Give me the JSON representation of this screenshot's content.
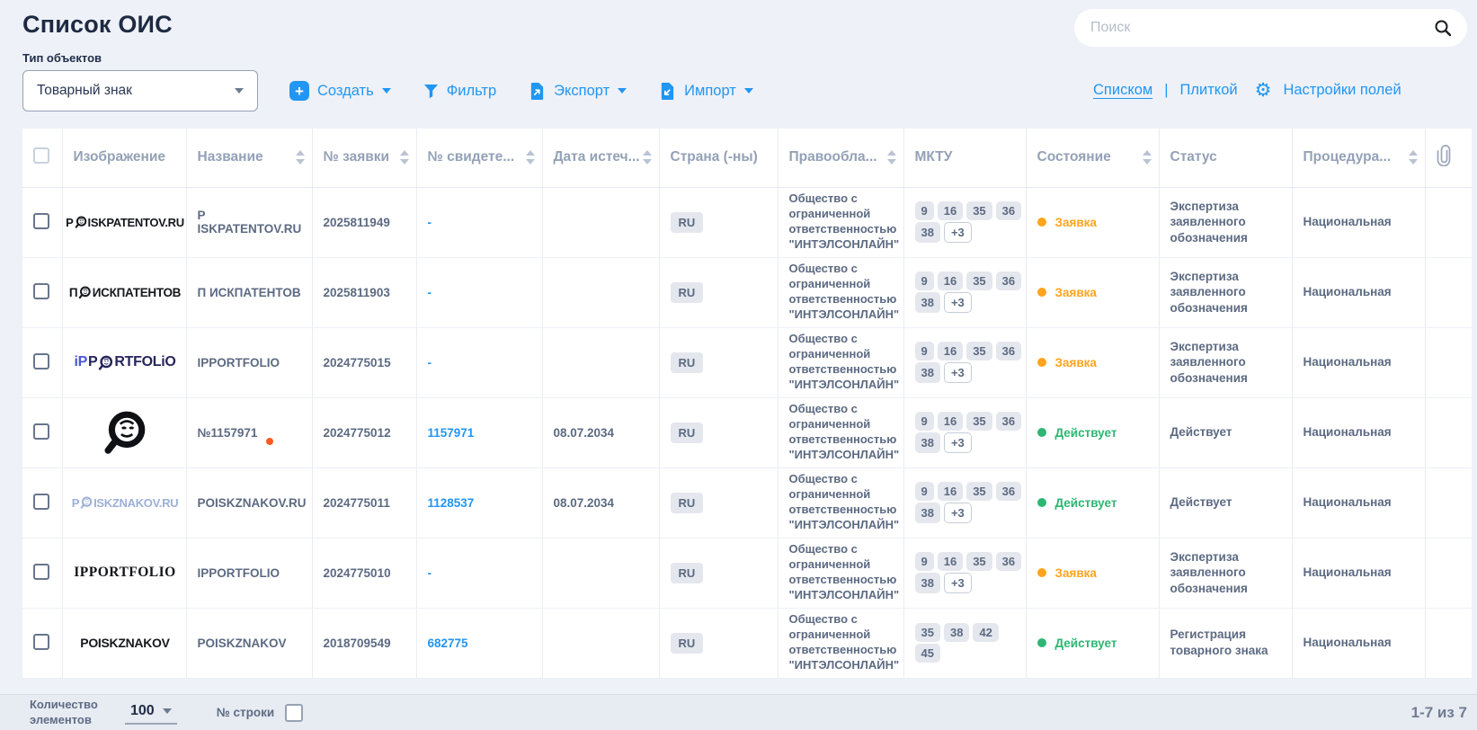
{
  "page": {
    "title": "Список ОИС"
  },
  "search": {
    "placeholder": "Поиск"
  },
  "object_type": {
    "label": "Тип объектов",
    "value": "Товарный знак"
  },
  "toolbar": {
    "create": "Создать",
    "filter": "Фильтр",
    "export": "Экспорт",
    "import": "Импорт"
  },
  "view_switch": {
    "list": "Списком",
    "divider": "|",
    "tiles": "Плиткой",
    "field_settings": "Настройки полей"
  },
  "colors": {
    "accent": "#2196F3",
    "link": "#2196F3",
    "orange": "#FFA41C",
    "green": "#2DB673",
    "marker": "#FF5A1F"
  },
  "table": {
    "columns": [
      {
        "id": "select",
        "label": "",
        "sortable": false
      },
      {
        "id": "image",
        "label": "Изображение",
        "sortable": false
      },
      {
        "id": "name",
        "label": "Название",
        "sortable": true
      },
      {
        "id": "app",
        "label": "№ заявки",
        "sortable": true
      },
      {
        "id": "cert",
        "label": "№ свидете...",
        "sortable": true
      },
      {
        "id": "expiry",
        "label": "Дата истеч...",
        "sortable": true
      },
      {
        "id": "country",
        "label": "Страна (-ны)",
        "sortable": false
      },
      {
        "id": "holder",
        "label": "Правообла...",
        "sortable": true
      },
      {
        "id": "mktu",
        "label": "МКТУ",
        "sortable": false
      },
      {
        "id": "state",
        "label": "Состояние",
        "sortable": true
      },
      {
        "id": "status",
        "label": "Статус",
        "sortable": false
      },
      {
        "id": "procedure",
        "label": "Процедура...",
        "sortable": true
      },
      {
        "id": "attach",
        "label": "",
        "sortable": false,
        "icon": "paperclip-icon"
      }
    ],
    "rows": [
      {
        "logo": {
          "kind": "wordmark",
          "font": "sans",
          "size": 13,
          "color": "#17181d",
          "parts": [
            {
              "t": "P"
            },
            {
              "lion": true
            },
            {
              "t": "ISKPATENTOV.RU"
            }
          ]
        },
        "name": "P ISKPATENTOV.RU",
        "marker": false,
        "app": "2025811949",
        "cert": "-",
        "cert_link": false,
        "expiry": "",
        "country": "RU",
        "holder": "Общество с ограниченной ответственностью \"ИНТЭЛСОНЛАЙН\"",
        "mktu": [
          [
            "9",
            "16",
            "35",
            "36"
          ],
          [
            "38",
            "+3"
          ]
        ],
        "state": {
          "label": "Заявка",
          "kind": "orange"
        },
        "status": "Экспертиза заявленного обозначения",
        "procedure": "Национальная"
      },
      {
        "logo": {
          "kind": "wordmark",
          "font": "sans",
          "size": 13.5,
          "color": "#17181d",
          "parts": [
            {
              "t": "П"
            },
            {
              "lion": true
            },
            {
              "t": "ИСКПАТЕНТОВ"
            }
          ]
        },
        "name": "П ИСКПАТЕНТОВ",
        "marker": false,
        "app": "2025811903",
        "cert": "-",
        "cert_link": false,
        "expiry": "",
        "country": "RU",
        "holder": "Общество с ограниченной ответственностью \"ИНТЭЛСОНЛАЙН\"",
        "mktu": [
          [
            "9",
            "16",
            "35",
            "36"
          ],
          [
            "38",
            "+3"
          ]
        ],
        "state": {
          "label": "Заявка",
          "kind": "orange"
        },
        "status": "Экспертиза заявленного обозначения",
        "procedure": "Национальная"
      },
      {
        "logo": {
          "kind": "wordmark",
          "font": "sans",
          "size": 16,
          "color": "#26245c",
          "parts": [
            {
              "t": "iP",
              "color": "#4858d8"
            },
            {
              "t": "P"
            },
            {
              "lion": true
            },
            {
              "t": "RTFOLiO"
            }
          ]
        },
        "name": "IPPORTFOLIO",
        "marker": false,
        "app": "2024775015",
        "cert": "-",
        "cert_link": false,
        "expiry": "",
        "country": "RU",
        "holder": "Общество с ограниченной ответственностью \"ИНТЭЛСОНЛАЙН\"",
        "mktu": [
          [
            "9",
            "16",
            "35",
            "36"
          ],
          [
            "38",
            "+3"
          ]
        ],
        "state": {
          "label": "Заявка",
          "kind": "orange"
        },
        "status": "Экспертиза заявленного обозначения",
        "procedure": "Национальная"
      },
      {
        "logo": {
          "kind": "lion-big",
          "size": 50,
          "color": "#101114"
        },
        "name": "№1157971",
        "marker": true,
        "app": "2024775012",
        "cert": "1157971",
        "cert_link": true,
        "expiry": "08.07.2034",
        "country": "RU",
        "holder": "Общество с ограниченной ответственностью \"ИНТЭЛСОНЛАЙН\"",
        "mktu": [
          [
            "9",
            "16",
            "35",
            "36"
          ],
          [
            "38",
            "+3"
          ]
        ],
        "state": {
          "label": "Действует",
          "kind": "green"
        },
        "status": "Действует",
        "procedure": "Национальная"
      },
      {
        "logo": {
          "kind": "wordmark",
          "font": "sans",
          "size": 13,
          "color": "#9cb0d6",
          "parts": [
            {
              "t": "P"
            },
            {
              "lion": true
            },
            {
              "t": "ISKZNAKOV.RU"
            }
          ]
        },
        "name": "POISKZNAKOV.RU",
        "marker": false,
        "app": "2024775011",
        "cert": "1128537",
        "cert_link": true,
        "expiry": "08.07.2034",
        "country": "RU",
        "holder": "Общество с ограниченной ответственностью \"ИНТЭЛСОНЛАЙН\"",
        "mktu": [
          [
            "9",
            "16",
            "35",
            "36"
          ],
          [
            "38",
            "+3"
          ]
        ],
        "state": {
          "label": "Действует",
          "kind": "green"
        },
        "status": "Действует",
        "procedure": "Национальная"
      },
      {
        "logo": {
          "kind": "wordmark",
          "font": "serif",
          "size": 15.5,
          "color": "#14151a",
          "parts": [
            {
              "t": "IPPORTFOLIO"
            }
          ]
        },
        "name": "IPPORTFOLIO",
        "marker": false,
        "app": "2024775010",
        "cert": "-",
        "cert_link": false,
        "expiry": "",
        "country": "RU",
        "holder": "Общество с ограниченной ответственностью \"ИНТЭЛСОНЛАЙН\"",
        "mktu": [
          [
            "9",
            "16",
            "35",
            "36"
          ],
          [
            "38",
            "+3"
          ]
        ],
        "state": {
          "label": "Заявка",
          "kind": "orange"
        },
        "status": "Экспертиза заявленного обозначения",
        "procedure": "Национальная"
      },
      {
        "logo": {
          "kind": "wordmark",
          "font": "sans",
          "size": 14,
          "color": "#17181d",
          "parts": [
            {
              "t": "POISKZNAKOV"
            }
          ]
        },
        "name": "POISKZNAKOV",
        "marker": false,
        "app": "2018709549",
        "cert": "682775",
        "cert_link": true,
        "expiry": "",
        "country": "RU",
        "holder": "Общество с ограниченной ответственностью \"ИНТЭЛСОНЛАЙН\"",
        "mktu": [
          [
            "35",
            "38",
            "42"
          ],
          [
            "45"
          ]
        ],
        "state": {
          "label": "Действует",
          "kind": "green"
        },
        "status": "Регистрация товарного знака",
        "procedure": "Национальная"
      }
    ]
  },
  "footer": {
    "count_label": "Количество элементов",
    "page_size": "100",
    "row_number_label": "№ строки",
    "range": "1-7 из 7"
  }
}
